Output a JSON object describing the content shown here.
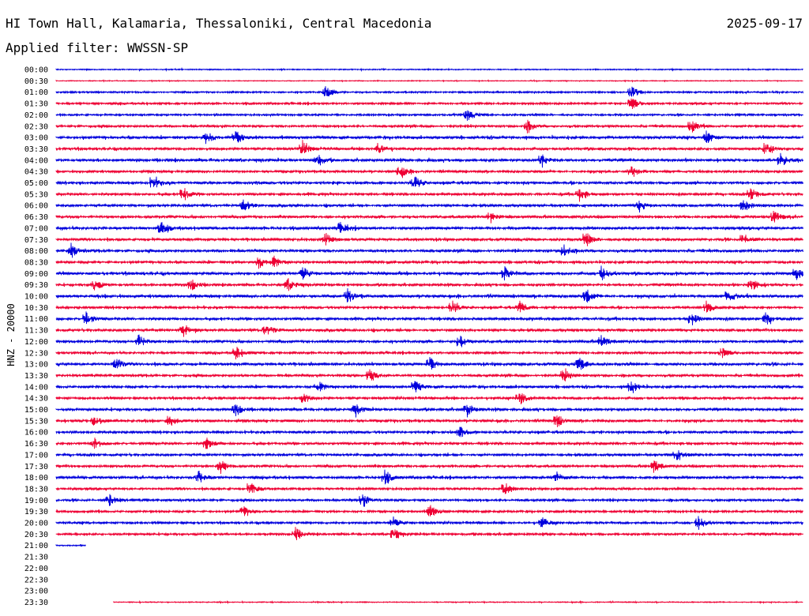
{
  "header": {
    "station": "HI Town Hall, Kalamaria, Thessaloniki, Central Macedonia",
    "date": "2025-09-17",
    "filter": "Applied filter: WWSSN-SP"
  },
  "chart_data": {
    "type": "line",
    "ylabel": "HNZ - 20000",
    "rows": [
      {
        "time": "00:00",
        "color": "#0000dd",
        "coverage": [
          0,
          1
        ],
        "activity": 0.15
      },
      {
        "time": "00:30",
        "color": "#ee0033",
        "coverage": [
          0,
          1
        ],
        "activity": 0.05
      },
      {
        "time": "01:00",
        "color": "#0000dd",
        "coverage": [
          0,
          1
        ],
        "activity": 0.35,
        "events": [
          0.36,
          0.77
        ]
      },
      {
        "time": "01:30",
        "color": "#ee0033",
        "coverage": [
          0,
          1
        ],
        "activity": 0.45,
        "events": [
          0.77
        ]
      },
      {
        "time": "02:00",
        "color": "#0000dd",
        "coverage": [
          0,
          1
        ],
        "activity": 0.4,
        "events": [
          0.55
        ]
      },
      {
        "time": "02:30",
        "color": "#ee0033",
        "coverage": [
          0,
          1
        ],
        "activity": 0.5,
        "events": [
          0.63,
          0.85
        ]
      },
      {
        "time": "03:00",
        "color": "#0000dd",
        "coverage": [
          0,
          1
        ],
        "activity": 0.7,
        "events": [
          0.2,
          0.24,
          0.87
        ]
      },
      {
        "time": "03:30",
        "color": "#ee0033",
        "coverage": [
          0,
          1
        ],
        "activity": 0.6,
        "events": [
          0.33,
          0.43,
          0.95
        ]
      },
      {
        "time": "04:00",
        "color": "#0000dd",
        "coverage": [
          0,
          1
        ],
        "activity": 0.65,
        "events": [
          0.35,
          0.65,
          0.97
        ]
      },
      {
        "time": "04:30",
        "color": "#ee0033",
        "coverage": [
          0,
          1
        ],
        "activity": 0.55,
        "events": [
          0.46,
          0.77
        ]
      },
      {
        "time": "05:00",
        "color": "#0000dd",
        "coverage": [
          0,
          1
        ],
        "activity": 0.6,
        "events": [
          0.13,
          0.48
        ]
      },
      {
        "time": "05:30",
        "color": "#ee0033",
        "coverage": [
          0,
          1
        ],
        "activity": 0.55,
        "events": [
          0.17,
          0.7,
          0.93
        ]
      },
      {
        "time": "06:00",
        "color": "#0000dd",
        "coverage": [
          0,
          1
        ],
        "activity": 0.6,
        "events": [
          0.25,
          0.78,
          0.92
        ]
      },
      {
        "time": "06:30",
        "color": "#ee0033",
        "coverage": [
          0,
          1
        ],
        "activity": 0.6,
        "events": [
          0.58,
          0.96
        ]
      },
      {
        "time": "07:00",
        "color": "#0000dd",
        "coverage": [
          0,
          1
        ],
        "activity": 0.65,
        "events": [
          0.14,
          0.38
        ]
      },
      {
        "time": "07:30",
        "color": "#ee0033",
        "coverage": [
          0,
          1
        ],
        "activity": 0.6,
        "events": [
          0.36,
          0.71,
          0.92
        ]
      },
      {
        "time": "08:00",
        "color": "#0000dd",
        "coverage": [
          0,
          1
        ],
        "activity": 0.6,
        "events": [
          0.02,
          0.68
        ]
      },
      {
        "time": "08:30",
        "color": "#ee0033",
        "coverage": [
          0,
          1
        ],
        "activity": 0.6,
        "events": [
          0.27,
          0.29
        ]
      },
      {
        "time": "09:00",
        "color": "#0000dd",
        "coverage": [
          0,
          1
        ],
        "activity": 0.7,
        "events": [
          0.33,
          0.6,
          0.73,
          0.99
        ]
      },
      {
        "time": "09:30",
        "color": "#ee0033",
        "coverage": [
          0,
          1
        ],
        "activity": 0.55,
        "events": [
          0.05,
          0.18,
          0.31,
          0.93
        ]
      },
      {
        "time": "10:00",
        "color": "#0000dd",
        "coverage": [
          0,
          1
        ],
        "activity": 0.75,
        "events": [
          0.39,
          0.71,
          0.9
        ]
      },
      {
        "time": "10:30",
        "color": "#ee0033",
        "coverage": [
          0,
          1
        ],
        "activity": 0.55,
        "events": [
          0.53,
          0.62,
          0.87
        ]
      },
      {
        "time": "11:00",
        "color": "#0000dd",
        "coverage": [
          0,
          1
        ],
        "activity": 0.6,
        "events": [
          0.04,
          0.85,
          0.95
        ]
      },
      {
        "time": "11:30",
        "color": "#ee0033",
        "coverage": [
          0,
          1
        ],
        "activity": 0.6,
        "events": [
          0.17,
          0.28
        ]
      },
      {
        "time": "12:00",
        "color": "#0000dd",
        "coverage": [
          0,
          1
        ],
        "activity": 0.6,
        "events": [
          0.11,
          0.54,
          0.73
        ]
      },
      {
        "time": "12:30",
        "color": "#ee0033",
        "coverage": [
          0,
          1
        ],
        "activity": 0.5,
        "events": [
          0.24,
          0.89
        ]
      },
      {
        "time": "13:00",
        "color": "#0000dd",
        "coverage": [
          0,
          1
        ],
        "activity": 0.65,
        "events": [
          0.08,
          0.5,
          0.7
        ]
      },
      {
        "time": "13:30",
        "color": "#ee0033",
        "coverage": [
          0,
          1
        ],
        "activity": 0.55,
        "events": [
          0.42,
          0.68
        ]
      },
      {
        "time": "14:00",
        "color": "#0000dd",
        "coverage": [
          0,
          1
        ],
        "activity": 0.6,
        "events": [
          0.35,
          0.48,
          0.77
        ]
      },
      {
        "time": "14:30",
        "color": "#ee0033",
        "coverage": [
          0,
          1
        ],
        "activity": 0.55,
        "events": [
          0.33,
          0.62
        ]
      },
      {
        "time": "15:00",
        "color": "#0000dd",
        "coverage": [
          0,
          1
        ],
        "activity": 0.6,
        "events": [
          0.24,
          0.4,
          0.55
        ]
      },
      {
        "time": "15:30",
        "color": "#ee0033",
        "coverage": [
          0,
          1
        ],
        "activity": 0.6,
        "events": [
          0.05,
          0.15,
          0.67
        ]
      },
      {
        "time": "16:00",
        "color": "#0000dd",
        "coverage": [
          0,
          1
        ],
        "activity": 0.55,
        "events": [
          0.54
        ]
      },
      {
        "time": "16:30",
        "color": "#ee0033",
        "coverage": [
          0,
          1
        ],
        "activity": 0.55,
        "events": [
          0.05,
          0.2
        ]
      },
      {
        "time": "17:00",
        "color": "#0000dd",
        "coverage": [
          0,
          1
        ],
        "activity": 0.55,
        "events": [
          0.83
        ]
      },
      {
        "time": "17:30",
        "color": "#ee0033",
        "coverage": [
          0,
          1
        ],
        "activity": 0.55,
        "events": [
          0.22,
          0.8
        ]
      },
      {
        "time": "18:00",
        "color": "#0000dd",
        "coverage": [
          0,
          1
        ],
        "activity": 0.6,
        "events": [
          0.19,
          0.44,
          0.67
        ]
      },
      {
        "time": "18:30",
        "color": "#ee0033",
        "coverage": [
          0,
          1
        ],
        "activity": 0.5,
        "events": [
          0.26,
          0.6
        ]
      },
      {
        "time": "19:00",
        "color": "#0000dd",
        "coverage": [
          0,
          1
        ],
        "activity": 0.5,
        "events": [
          0.07,
          0.41
        ]
      },
      {
        "time": "19:30",
        "color": "#ee0033",
        "coverage": [
          0,
          1
        ],
        "activity": 0.5,
        "events": [
          0.25,
          0.5
        ]
      },
      {
        "time": "20:00",
        "color": "#0000dd",
        "coverage": [
          0,
          1
        ],
        "activity": 0.5,
        "events": [
          0.45,
          0.65,
          0.86
        ]
      },
      {
        "time": "20:30",
        "color": "#ee0033",
        "coverage": [
          0,
          1
        ],
        "activity": 0.5,
        "events": [
          0.32,
          0.45
        ]
      },
      {
        "time": "21:00",
        "color": "#0000dd",
        "coverage": [
          0,
          0.04
        ],
        "activity": 0.2
      },
      {
        "time": "21:30",
        "color": "#ee0033",
        "coverage": null
      },
      {
        "time": "22:00",
        "color": "#0000dd",
        "coverage": null
      },
      {
        "time": "22:30",
        "color": "#ee0033",
        "coverage": null
      },
      {
        "time": "23:00",
        "color": "#0000dd",
        "coverage": null
      },
      {
        "time": "23:30",
        "color": "#ee0033",
        "coverage": [
          0.077,
          1
        ],
        "activity": 0.1
      }
    ]
  }
}
